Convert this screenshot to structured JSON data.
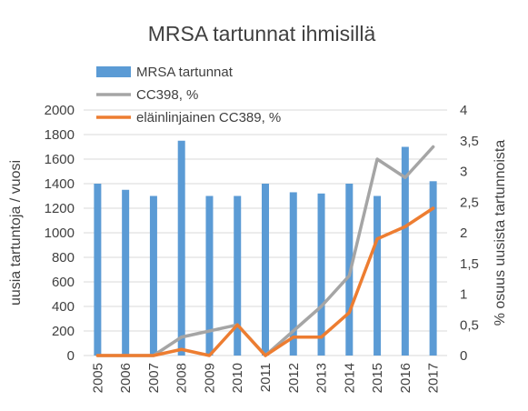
{
  "chart_data": {
    "type": "bar",
    "title": "MRSA tartunnat ihmisillä",
    "categories": [
      "2005",
      "2006",
      "2007",
      "2008",
      "2009",
      "2010",
      "2011",
      "2012",
      "2013",
      "2014",
      "2015",
      "2016",
      "2017"
    ],
    "y_left": {
      "label": "uusia tartuntoja / vuosi",
      "ylim": [
        0,
        2000
      ],
      "ticks": [
        0,
        200,
        400,
        600,
        800,
        1000,
        1200,
        1400,
        1600,
        1800,
        2000
      ],
      "tick_labels": [
        "0",
        "200",
        "400",
        "600",
        "800",
        "1000",
        "1200",
        "1400",
        "1600",
        "1800",
        "2000"
      ]
    },
    "y_right": {
      "label": "% osuus uusista tartunnoista",
      "ylim": [
        0,
        4
      ],
      "ticks": [
        0,
        0.5,
        1,
        1.5,
        2,
        2.5,
        3,
        3.5,
        4
      ],
      "tick_labels": [
        "0",
        "0,5",
        "1",
        "1,5",
        "2",
        "2,5",
        "3",
        "3,5",
        "4"
      ]
    },
    "series": [
      {
        "name": "MRSA tartunnat",
        "type": "bar",
        "axis": "left",
        "color": "#5B9BD5",
        "values": [
          1400,
          1350,
          1300,
          1750,
          1300,
          1300,
          1400,
          1330,
          1320,
          1400,
          1300,
          1700,
          1420
        ]
      },
      {
        "name": "CC398, %",
        "type": "line",
        "axis": "right",
        "color": "#A5A5A5",
        "values": [
          0,
          0,
          0,
          0.3,
          0.4,
          0.5,
          0,
          0.4,
          0.8,
          1.3,
          3.2,
          2.9,
          3.4
        ]
      },
      {
        "name": "eläinlinjainen CC389, %",
        "type": "line",
        "axis": "right",
        "color": "#ED7D31",
        "values": [
          0,
          0,
          0,
          0.1,
          0,
          0.5,
          0,
          0.3,
          0.3,
          0.7,
          1.9,
          2.1,
          2.4
        ]
      }
    ],
    "grid": true,
    "legend_position": "top-left"
  }
}
